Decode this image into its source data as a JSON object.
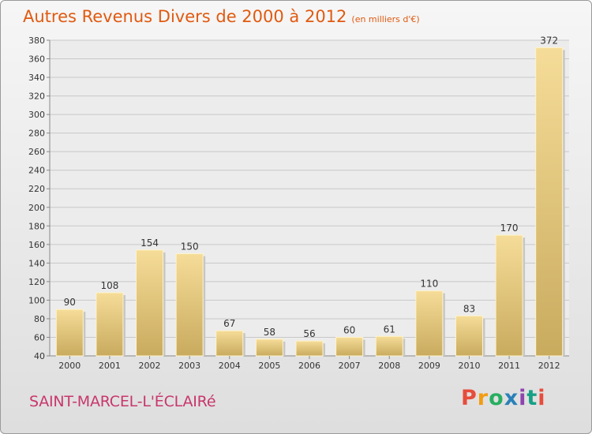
{
  "title": "Autres Revenus Divers de 2000 à 2012",
  "subtitle": "(en milliers d'€)",
  "place": "SAINT-MARCEL-L'ÉCLAIRé",
  "logo": {
    "letters": [
      "P",
      "r",
      "o",
      "x",
      "i",
      "t",
      "i"
    ]
  },
  "colors": {
    "title": "#e05a10",
    "place": "#c8376c",
    "bar_light": "#f5dc98",
    "bar_dark": "#c9ab5e"
  },
  "chart_data": {
    "type": "bar",
    "categories": [
      "2000",
      "2001",
      "2002",
      "2003",
      "2004",
      "2005",
      "2006",
      "2007",
      "2008",
      "2009",
      "2010",
      "2011",
      "2012"
    ],
    "values": [
      90,
      108,
      154,
      150,
      67,
      58,
      56,
      60,
      61,
      110,
      83,
      170,
      372
    ],
    "ylim": [
      40,
      380
    ],
    "yticks": [
      40,
      60,
      80,
      100,
      120,
      140,
      160,
      180,
      200,
      220,
      240,
      260,
      280,
      300,
      320,
      340,
      360,
      380
    ],
    "grid": true
  }
}
